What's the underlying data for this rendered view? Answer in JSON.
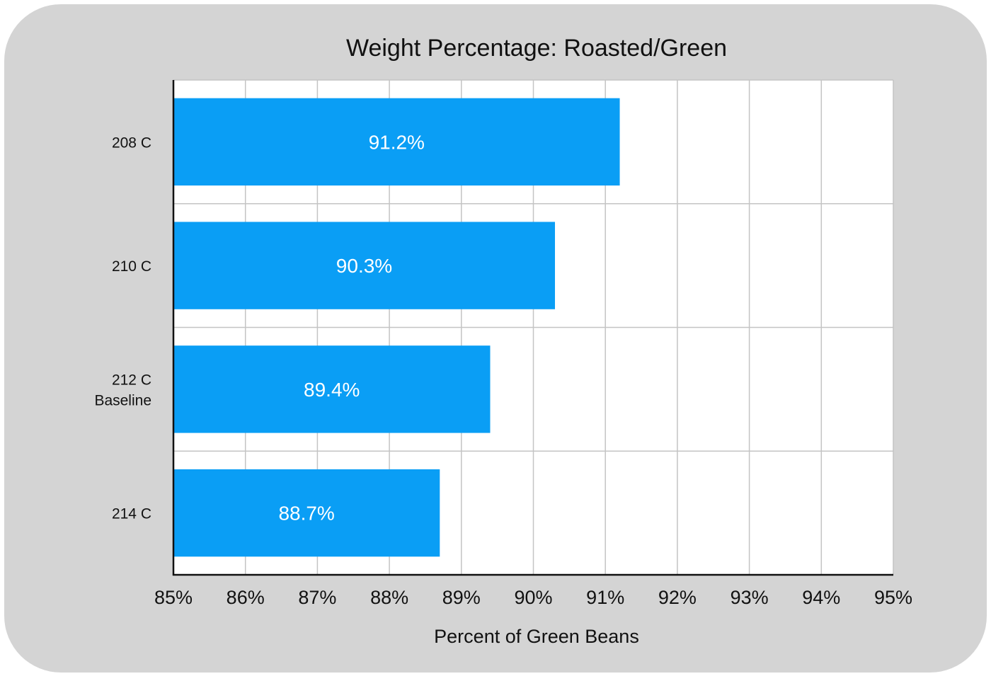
{
  "chart_data": {
    "type": "bar",
    "orientation": "horizontal",
    "title": "Weight Percentage: Roasted/Green",
    "xlabel": "Percent of Green Beans",
    "ylabel": "",
    "categories": [
      [
        "208 C"
      ],
      [
        "210 C"
      ],
      [
        "212 C",
        "Baseline"
      ],
      [
        "214 C"
      ]
    ],
    "values": [
      91.2,
      90.3,
      89.4,
      88.7
    ],
    "value_labels": [
      "91.2%",
      "90.3%",
      "89.4%",
      "88.7%"
    ],
    "xlim": [
      85,
      95
    ],
    "x_ticks": [
      "85%",
      "86%",
      "87%",
      "88%",
      "89%",
      "90%",
      "91%",
      "92%",
      "93%",
      "94%",
      "95%"
    ],
    "grid": true,
    "bar_color": "#0a9ef5",
    "label_color": "#ffffff",
    "background_color": "#d4d4d4",
    "plot_background_color": "#ffffff",
    "grid_color": "#c4c4c4",
    "axis_color": "#111111"
  }
}
